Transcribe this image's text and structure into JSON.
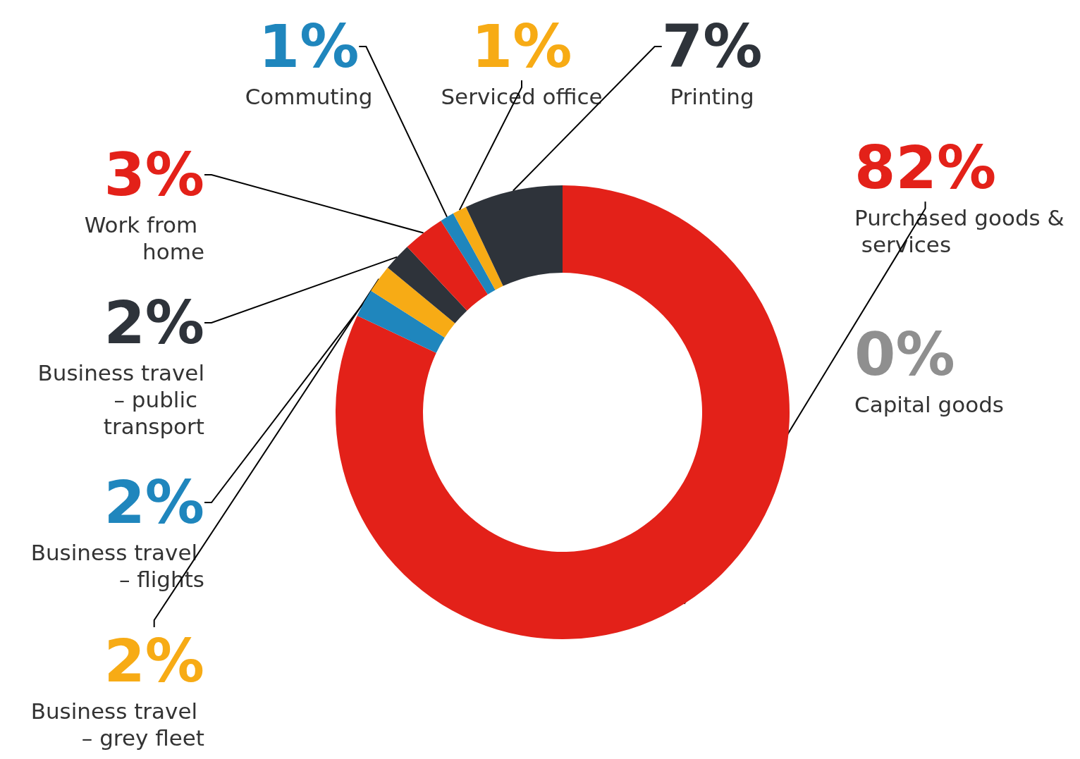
{
  "chart_data": {
    "type": "donut",
    "categories": [
      "Purchased goods & services",
      "Capital goods",
      "Business travel – flights",
      "Business travel – grey fleet",
      "Business travel – public transport",
      "Work from home",
      "Commuting",
      "Serviced office",
      "Printing"
    ],
    "values": [
      82,
      0,
      2,
      2,
      2,
      3,
      1,
      1,
      7
    ],
    "colors": [
      "#e32119",
      "#8f8f8f",
      "#1f86bd",
      "#f7ab15",
      "#2e333a",
      "#e32119",
      "#1f86bd",
      "#f7ab15",
      "#2e333a"
    ],
    "value_labels": [
      "82%",
      "0%",
      "2%",
      "2%",
      "2%",
      "3%",
      "1%",
      "1%",
      "7%"
    ]
  }
}
